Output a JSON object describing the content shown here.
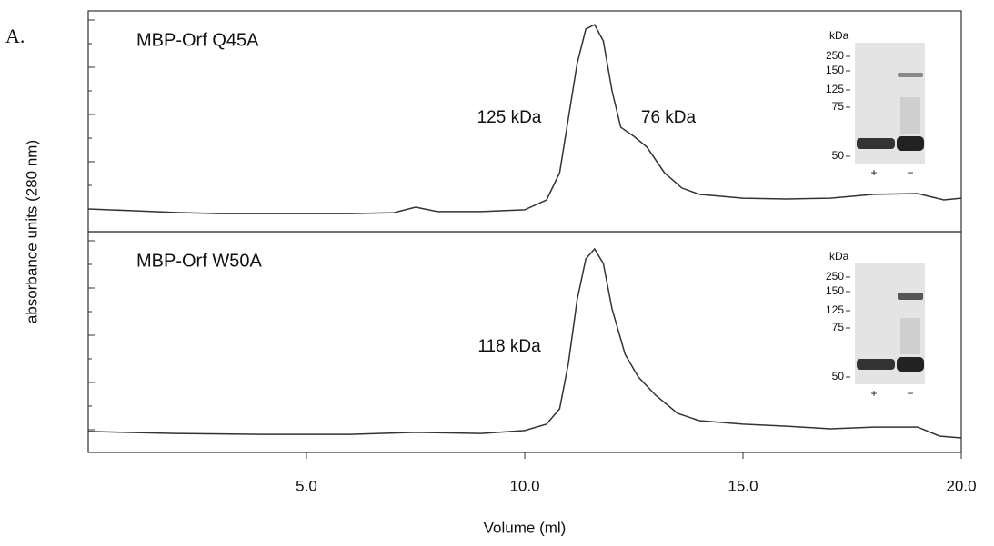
{
  "label": "A.",
  "ylabel": "absorbance units (280 nm)",
  "xlabel": "Volume (ml)",
  "chart_data": [
    {
      "type": "line",
      "title": "MBP-Orf Q45A",
      "color": "#333333",
      "annotations": [
        "125 kDa",
        "76 kDa"
      ],
      "inset": {
        "unit": "kDa",
        "markers": [
          "250",
          "150",
          "125",
          "75",
          "50"
        ],
        "lanes": [
          "+",
          "−"
        ]
      },
      "x": [
        0,
        1,
        2,
        3,
        4,
        5,
        6,
        7,
        7.5,
        8,
        9,
        10,
        10.5,
        10.8,
        11.0,
        11.2,
        11.4,
        11.6,
        11.8,
        12.0,
        12.2,
        12.5,
        12.8,
        13.2,
        13.6,
        14,
        15,
        16,
        17,
        18,
        19,
        19.6,
        20
      ],
      "values": [
        10.3,
        9.5,
        8.7,
        8.2,
        8.2,
        8.2,
        8.2,
        8.6,
        11.1,
        9.1,
        9.1,
        9.9,
        14.4,
        26.7,
        51.4,
        76.1,
        91.8,
        93.8,
        86.4,
        63.8,
        47.3,
        43.2,
        38.3,
        26.7,
        19.8,
        16.9,
        15.2,
        14.8,
        15.2,
        16.9,
        17.3,
        14.4,
        15.2
      ],
      "xlim": [
        0,
        20
      ],
      "ylim": [
        0,
        100
      ]
    },
    {
      "type": "line",
      "title": "MBP-Orf W50A",
      "color": "#333333",
      "annotations": [
        "118 kDa"
      ],
      "inset": {
        "unit": "kDa",
        "markers": [
          "250",
          "150",
          "125",
          "75",
          "50"
        ],
        "lanes": [
          "+",
          "−"
        ]
      },
      "x": [
        0,
        2,
        4,
        6,
        7.5,
        9,
        10,
        10.5,
        10.8,
        11.0,
        11.2,
        11.4,
        11.6,
        11.8,
        12.0,
        12.3,
        12.6,
        13,
        13.5,
        14,
        15,
        16,
        17,
        18,
        19,
        19.5,
        20
      ],
      "values": [
        9.5,
        8.6,
        8.2,
        8.2,
        9.1,
        8.6,
        9.9,
        12.8,
        19.8,
        40.3,
        69.1,
        87.7,
        92.2,
        85.6,
        65.0,
        44.4,
        34.2,
        25.9,
        17.7,
        14.4,
        12.8,
        11.9,
        10.7,
        11.5,
        11.5,
        7.4,
        6.6
      ],
      "xlim": [
        0,
        20
      ],
      "ylim": [
        0,
        100
      ],
      "xticks": [
        {
          "value": 5,
          "label": "5.0"
        },
        {
          "value": 10,
          "label": "10.0"
        },
        {
          "value": 15,
          "label": "15.0"
        },
        {
          "value": 20,
          "label": "20.0"
        }
      ]
    }
  ]
}
